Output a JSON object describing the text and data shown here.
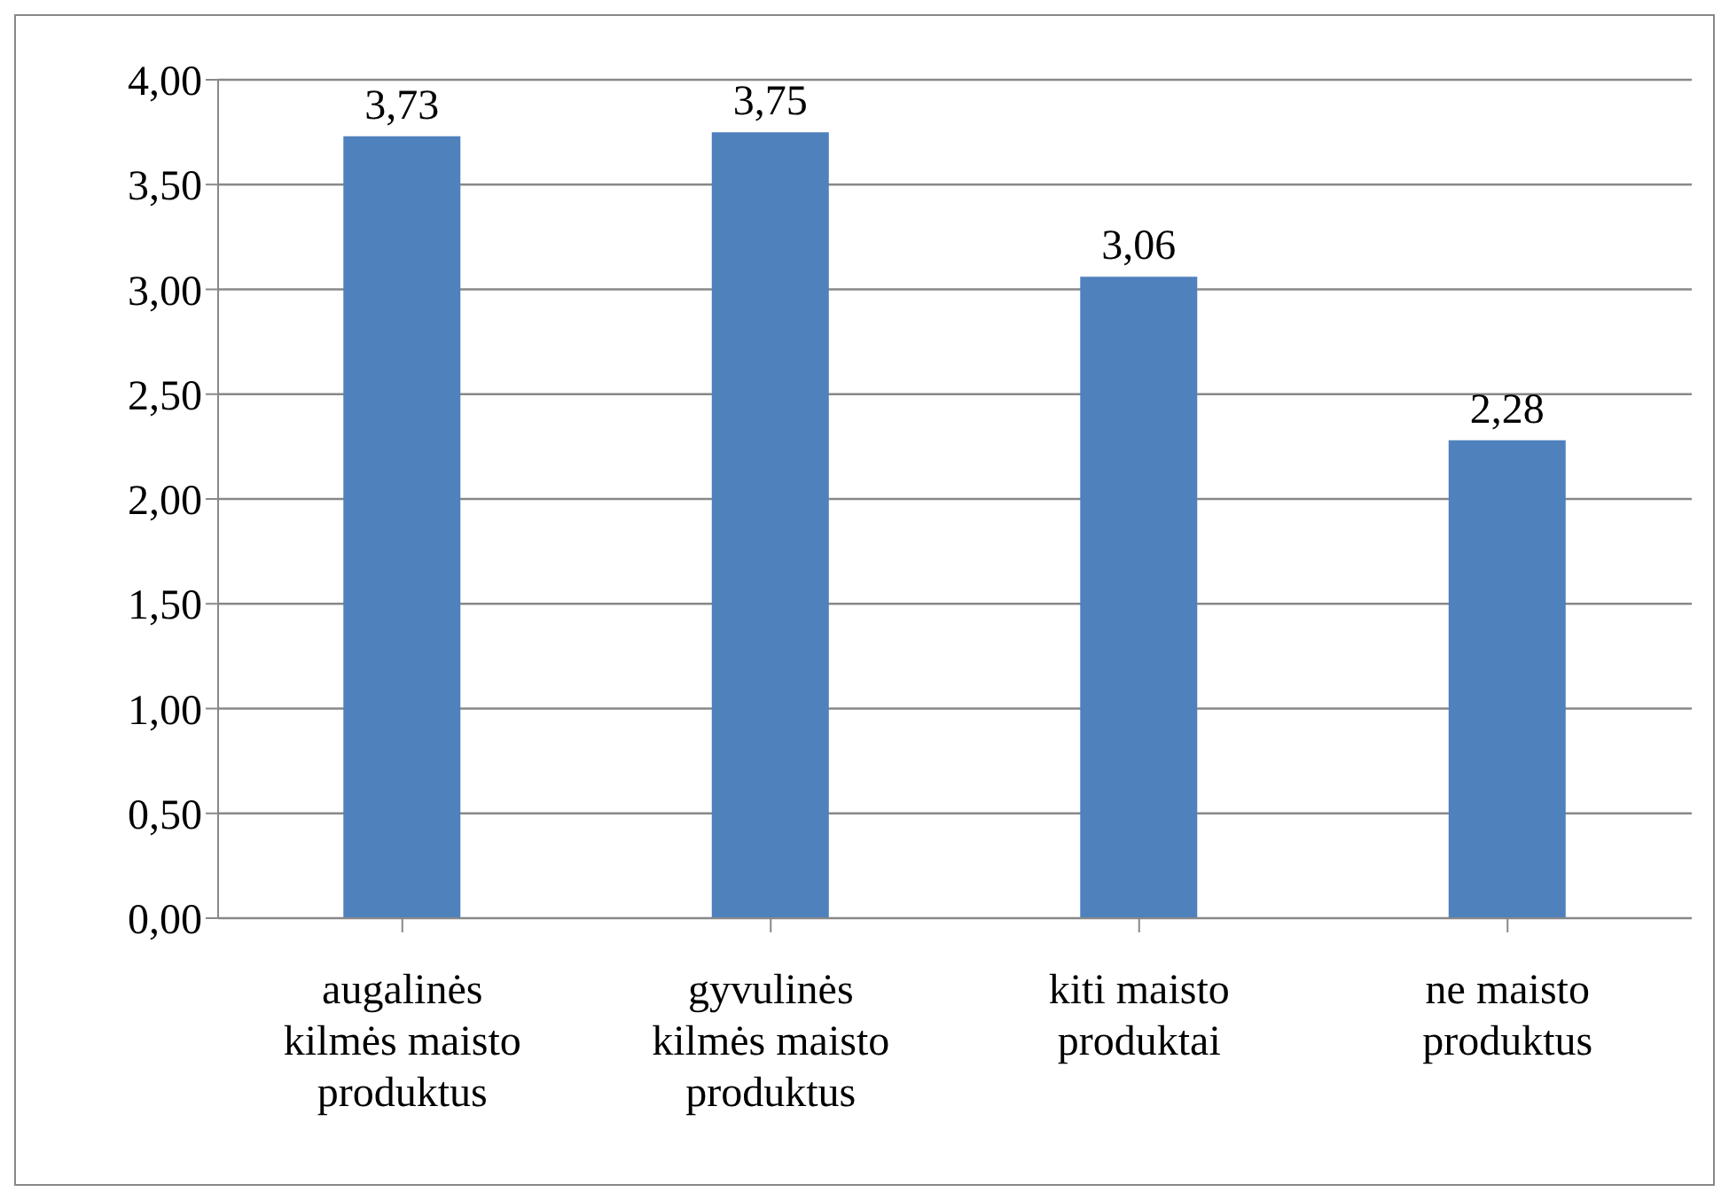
{
  "chart_data": {
    "type": "bar",
    "categories": [
      "augalinės kilmės maisto produktus",
      "gyvulinės kilmės maisto produktus",
      "kiti maisto produktai",
      "ne maisto produktus"
    ],
    "values": [
      3.73,
      3.75,
      3.06,
      2.28
    ],
    "color": "#4f81bd",
    "data_labels": true,
    "value_labels": [
      "3,73",
      "3,75",
      "3,06",
      "2,28"
    ],
    "ylim": [
      0,
      4
    ],
    "yticks": [
      {
        "value": 0,
        "label": "0,00"
      },
      {
        "value": 0.5,
        "label": "0,50"
      },
      {
        "value": 1,
        "label": "1,00"
      },
      {
        "value": 1.5,
        "label": "1,50"
      },
      {
        "value": 2,
        "label": "2,00"
      },
      {
        "value": 2.5,
        "label": "2,50"
      },
      {
        "value": 3,
        "label": "3,00"
      },
      {
        "value": 3.5,
        "label": "3,50"
      },
      {
        "value": 4,
        "label": "4,00"
      }
    ],
    "grid": "y",
    "legend": false
  }
}
